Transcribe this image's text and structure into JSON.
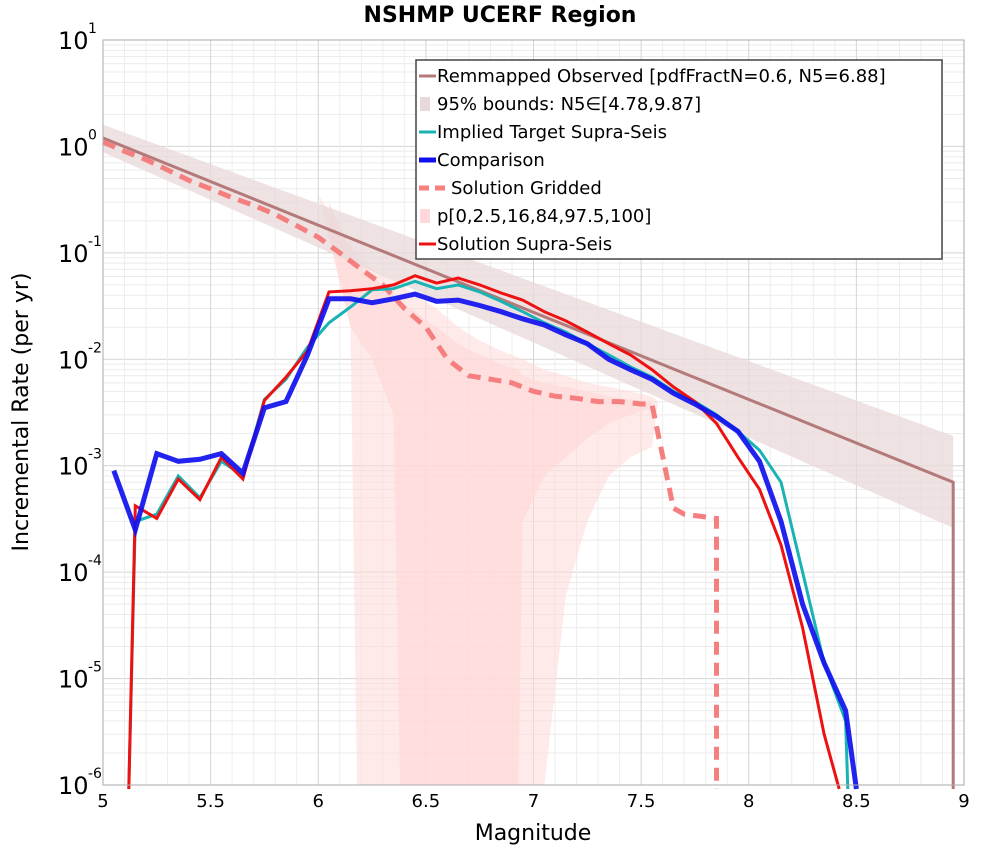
{
  "chart_data": {
    "type": "line",
    "title": "NSHMP UCERF Region",
    "xlabel": "Magnitude",
    "ylabel": "Incremental Rate (per yr)",
    "xlim": [
      5,
      9
    ],
    "ylim": [
      1e-06,
      10
    ],
    "y_scale": "log",
    "grid": true,
    "legend_position": "top-right",
    "x_ticks": [
      "5",
      "5.5",
      "6",
      "6.5",
      "7",
      "7.5",
      "8",
      "8.5",
      "9"
    ],
    "y_ticks": [
      {
        "base": "10",
        "exp": "-6"
      },
      {
        "base": "10",
        "exp": "-5"
      },
      {
        "base": "10",
        "exp": "-4"
      },
      {
        "base": "10",
        "exp": "-3"
      },
      {
        "base": "10",
        "exp": "-2"
      },
      {
        "base": "10",
        "exp": "-1"
      },
      {
        "base": "10",
        "exp": "0"
      },
      {
        "base": "10",
        "exp": "1"
      }
    ],
    "legend": [
      "Remmapped Observed [pdfFractN=0.6, N5=6.88]",
      "95% bounds: N5∈[4.78,9.87]",
      "Implied Target Supra-Seis",
      "Comparison",
      "Solution Gridded",
      "p[0,2.5,16,84,97.5,100]",
      "Solution Supra-Seis"
    ],
    "colors": {
      "observed": "#b47a7a",
      "bounds_fill": "#e8d8da",
      "implied": "#19b3b3",
      "comparison": "#1010ee",
      "gridded": "#f57f7f",
      "percentile_fill": "#ffd9d9",
      "supra": "#ee1111"
    },
    "observed": {
      "x": [
        5.0,
        8.95,
        8.95
      ],
      "y": [
        1.2,
        0.0007,
        5e-07
      ]
    },
    "bounds": {
      "x": [
        5.0,
        8.95
      ],
      "upper": [
        1.6,
        0.0019
      ],
      "lower": [
        0.88,
        0.00026
      ]
    },
    "percentile_bands": [
      {
        "x": [
          6.0,
          6.15,
          6.18,
          6.25,
          6.35,
          6.45,
          6.55,
          6.65,
          6.75,
          6.85,
          6.95,
          7.05,
          7.15,
          7.25,
          7.35,
          7.45,
          7.55,
          7.58
        ],
        "upper": [
          0.35,
          0.12,
          0.1,
          0.07,
          0.055,
          0.04,
          0.03,
          0.02,
          0.015,
          0.012,
          0.01,
          0.008,
          0.007,
          0.006,
          0.0055,
          0.005,
          0.0045,
          0.004
        ],
        "lower": [
          0.35,
          0.02,
          1e-06,
          1e-06,
          1e-06,
          1e-06,
          1e-06,
          1e-06,
          1e-06,
          1e-06,
          1e-06,
          1e-06,
          6e-05,
          0.0003,
          0.0008,
          0.0012,
          0.0015,
          0.004
        ]
      },
      {
        "x": [
          6.05,
          6.15,
          6.25,
          6.35,
          6.38,
          6.45,
          6.55,
          6.65,
          6.75,
          6.85,
          6.93,
          6.95,
          7.05,
          7.15,
          7.25,
          7.35,
          7.45,
          7.55
        ],
        "upper": [
          0.3,
          0.1,
          0.06,
          0.04,
          0.035,
          0.028,
          0.02,
          0.014,
          0.011,
          0.009,
          0.008,
          0.007,
          0.006,
          0.0055,
          0.005,
          0.0045,
          0.0042,
          0.004
        ],
        "lower": [
          0.15,
          0.02,
          0.01,
          0.003,
          1e-06,
          1e-06,
          1e-06,
          1e-06,
          1e-06,
          1e-06,
          1e-06,
          0.0003,
          0.0008,
          0.0012,
          0.0018,
          0.0025,
          0.003,
          0.0035
        ]
      }
    ],
    "implied_target": {
      "x": [
        5.12,
        5.15,
        5.25,
        5.35,
        5.45,
        5.55,
        5.65,
        5.75,
        5.85,
        5.95,
        6.05,
        6.15,
        6.25,
        6.35,
        6.45,
        6.55,
        6.65,
        6.75,
        6.85,
        6.95,
        7.05,
        7.15,
        7.25,
        7.35,
        7.45,
        7.55,
        7.65,
        7.75,
        7.85,
        7.95,
        8.05,
        8.15,
        8.25,
        8.35,
        8.45,
        8.46
      ],
      "y": [
        5e-07,
        0.0003,
        0.00035,
        0.0008,
        0.0005,
        0.0011,
        0.0008,
        0.0042,
        0.0065,
        0.013,
        0.022,
        0.031,
        0.045,
        0.046,
        0.054,
        0.046,
        0.05,
        0.043,
        0.035,
        0.028,
        0.022,
        0.018,
        0.014,
        0.011,
        0.0085,
        0.0068,
        0.005,
        0.004,
        0.003,
        0.0021,
        0.0014,
        0.0007,
        0.0001,
        1.4e-05,
        4e-06,
        5e-07
      ]
    },
    "comparison": {
      "x": [
        5.05,
        5.15,
        5.25,
        5.35,
        5.45,
        5.55,
        5.65,
        5.75,
        5.85,
        5.95,
        6.05,
        6.15,
        6.25,
        6.35,
        6.45,
        6.55,
        6.65,
        6.75,
        6.85,
        6.95,
        7.05,
        7.15,
        7.25,
        7.35,
        7.45,
        7.55,
        7.65,
        7.75,
        7.85,
        7.95,
        8.05,
        8.15,
        8.25,
        8.35,
        8.45,
        8.5
      ],
      "y": [
        0.0009,
        0.00025,
        0.0013,
        0.0011,
        0.00115,
        0.0013,
        0.00085,
        0.0035,
        0.004,
        0.011,
        0.037,
        0.037,
        0.034,
        0.037,
        0.041,
        0.035,
        0.036,
        0.032,
        0.028,
        0.024,
        0.021,
        0.017,
        0.014,
        0.01,
        0.008,
        0.0065,
        0.0048,
        0.0038,
        0.0029,
        0.0021,
        0.0011,
        0.0003,
        5e-05,
        1.4e-05,
        5e-06,
        5e-07
      ]
    },
    "gridded": {
      "x": [
        5.0,
        5.1,
        5.2,
        5.3,
        5.4,
        5.5,
        5.6,
        5.7,
        5.8,
        5.9,
        6.0,
        6.1,
        6.2,
        6.3,
        6.4,
        6.5,
        6.6,
        6.7,
        6.8,
        6.9,
        7.0,
        7.1,
        7.2,
        7.3,
        7.4,
        7.5,
        7.55,
        7.65,
        7.7,
        7.85,
        7.85
      ],
      "y": [
        1.1,
        0.9,
        0.75,
        0.6,
        0.48,
        0.4,
        0.33,
        0.28,
        0.23,
        0.18,
        0.14,
        0.1,
        0.07,
        0.05,
        0.03,
        0.02,
        0.01,
        0.007,
        0.0065,
        0.006,
        0.005,
        0.0045,
        0.0043,
        0.004,
        0.004,
        0.0038,
        0.0038,
        0.0004,
        0.00035,
        0.00032,
        5e-07
      ]
    },
    "supra_seis": {
      "x": [
        5.12,
        5.15,
        5.25,
        5.35,
        5.45,
        5.55,
        5.65,
        5.75,
        5.85,
        5.95,
        6.05,
        6.15,
        6.25,
        6.35,
        6.45,
        6.55,
        6.65,
        6.75,
        6.85,
        6.95,
        7.05,
        7.15,
        7.25,
        7.35,
        7.45,
        7.55,
        7.65,
        7.75,
        7.85,
        7.95,
        8.05,
        8.15,
        8.25,
        8.35,
        8.42
      ],
      "y": [
        5e-07,
        0.00042,
        0.00032,
        0.00075,
        0.00048,
        0.0012,
        0.00075,
        0.0041,
        0.0068,
        0.012,
        0.043,
        0.044,
        0.046,
        0.05,
        0.061,
        0.052,
        0.058,
        0.05,
        0.042,
        0.036,
        0.028,
        0.023,
        0.018,
        0.014,
        0.011,
        0.008,
        0.0055,
        0.004,
        0.0025,
        0.0012,
        0.0006,
        0.00018,
        3e-05,
        3e-06,
        5e-07
      ]
    }
  }
}
